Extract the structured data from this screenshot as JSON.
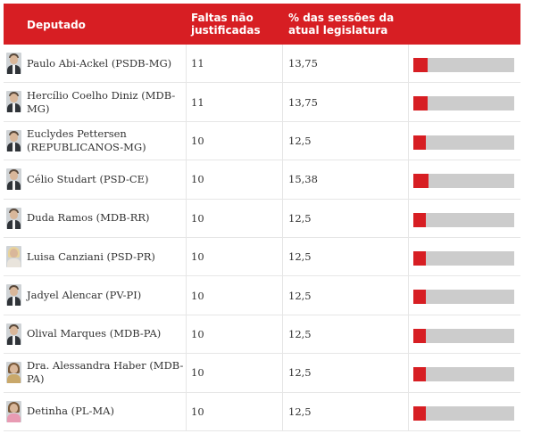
{
  "header": {
    "deputado": "Deputado",
    "faltas": "Faltas não justificadas",
    "percentual": "% das sessões da atual legislatura"
  },
  "colors": {
    "accent": "#d71e23",
    "bar_bg": "#cccccc"
  },
  "rows": [
    {
      "name": "Paulo Abi-Ackel (PSDB-MG)",
      "faltas": "11",
      "pct": "13,75",
      "pct_value": 13.75,
      "avatar": "male-avatar"
    },
    {
      "name": "Hercílio Coelho Diniz (MDB-MG)",
      "faltas": "11",
      "pct": "13,75",
      "pct_value": 13.75,
      "avatar": "male-avatar"
    },
    {
      "name": "Euclydes Pettersen (REPUBLICANOS-MG)",
      "faltas": "10",
      "pct": "12,5",
      "pct_value": 12.5,
      "avatar": "male-avatar"
    },
    {
      "name": "Célio Studart (PSD-CE)",
      "faltas": "10",
      "pct": "15,38",
      "pct_value": 15.38,
      "avatar": "male-avatar"
    },
    {
      "name": "Duda Ramos (MDB-RR)",
      "faltas": "10",
      "pct": "12,5",
      "pct_value": 12.5,
      "avatar": "male-avatar"
    },
    {
      "name": "Luisa Canziani (PSD-PR)",
      "faltas": "10",
      "pct": "12,5",
      "pct_value": 12.5,
      "avatar": "female-avatar"
    },
    {
      "name": "Jadyel Alencar (PV-PI)",
      "faltas": "10",
      "pct": "12,5",
      "pct_value": 12.5,
      "avatar": "male-avatar"
    },
    {
      "name": "Olival Marques (MDB-PA)",
      "faltas": "10",
      "pct": "12,5",
      "pct_value": 12.5,
      "avatar": "male-avatar"
    },
    {
      "name": "Dra. Alessandra Haber (MDB-PA)",
      "faltas": "10",
      "pct": "12,5",
      "pct_value": 12.5,
      "avatar": "female-avatar"
    },
    {
      "name": "Detinha (PL-MA)",
      "faltas": "10",
      "pct": "12,5",
      "pct_value": 12.5,
      "avatar": "female-avatar"
    }
  ]
}
